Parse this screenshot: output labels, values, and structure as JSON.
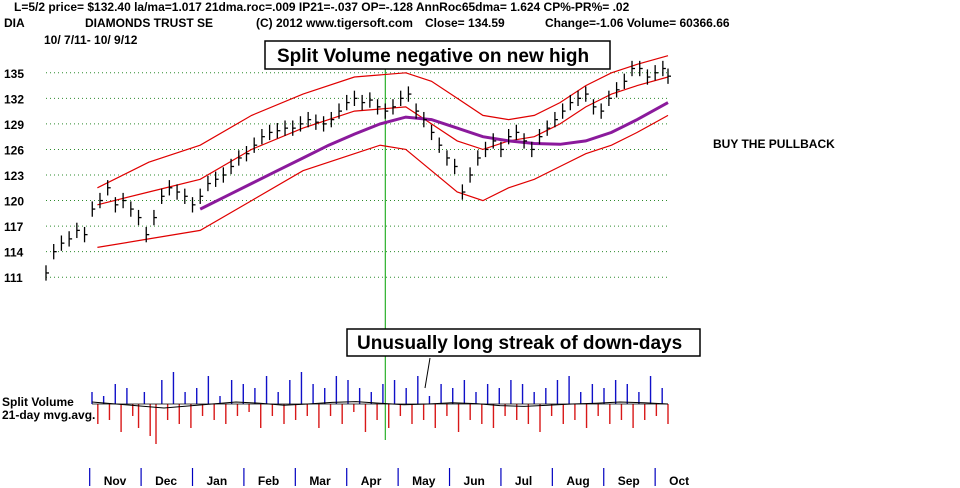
{
  "header": {
    "line1": "L=5/2  price= $132.40  la/ma=1.017 21dma.roc=.009 IP21=-.037 OP=-.128 AnnRoc65dma= 1.624 CP%-PR%=  .02",
    "symbol": "DIA",
    "name": "DIAMONDS TRUST SE",
    "source": "(C) 2012 www.tigersoft.com",
    "close": "Close=  134.59",
    "change": "Change=-1.06 Volume= 60366.66",
    "range": "10/ 7/11- 10/ 9/12"
  },
  "annotations": {
    "callout1": "Split Volume negative on new high",
    "callout2": "Unusually long streak of down-days",
    "side_note": "BUY THE PULLBACK",
    "volume_label_1": "Split Volume",
    "volume_label_2": "21-day mvg.avg."
  },
  "colors": {
    "price_bars": "#000000",
    "bands": "#e00000",
    "moving_average": "#8b1a9c",
    "vol_positive": "#1010c8",
    "vol_negative": "#d81818",
    "grid": "#2e8b2e",
    "marker_line": "#00a000",
    "month_ticks": "#0000c0"
  },
  "chart_data": {
    "type": "line",
    "title": "DIAMONDS TRUST SE",
    "date_range": [
      "10/7/11",
      "10/9/12"
    ],
    "y_ticks": [
      111,
      114,
      117,
      120,
      123,
      126,
      129,
      132,
      135
    ],
    "ylim": [
      109.5,
      136.5
    ],
    "x_ticks": [
      "Nov",
      "Dec",
      "Jan",
      "Feb",
      "Mar",
      "Apr",
      "May",
      "Jun",
      "Jul",
      "Aug",
      "Sep",
      "Oct"
    ],
    "x_range": [
      0,
      12.1
    ],
    "grid": "horizontal dotted",
    "vertical_marker_at": 6.6,
    "series": [
      {
        "kind": "price_bars",
        "points": [
          [
            0.0,
            111.5
          ],
          [
            0.15,
            114.0
          ],
          [
            0.3,
            115.0
          ],
          [
            0.45,
            115.5
          ],
          [
            0.6,
            116.5
          ],
          [
            0.75,
            116.0
          ],
          [
            0.9,
            119.0
          ],
          [
            1.05,
            120.0
          ],
          [
            1.2,
            121.5
          ],
          [
            1.35,
            119.5
          ],
          [
            1.5,
            120.0
          ],
          [
            1.65,
            119.0
          ],
          [
            1.8,
            118.0
          ],
          [
            1.95,
            116.0
          ],
          [
            2.1,
            118.0
          ],
          [
            2.25,
            120.5
          ],
          [
            2.4,
            121.5
          ],
          [
            2.55,
            121.0
          ],
          [
            2.7,
            120.5
          ],
          [
            2.85,
            119.5
          ],
          [
            3.0,
            120.5
          ],
          [
            3.15,
            122.0
          ],
          [
            3.3,
            122.5
          ],
          [
            3.45,
            123.0
          ],
          [
            3.6,
            124.0
          ],
          [
            3.75,
            125.0
          ],
          [
            3.9,
            125.5
          ],
          [
            4.05,
            126.5
          ],
          [
            4.2,
            127.5
          ],
          [
            4.35,
            128.0
          ],
          [
            4.5,
            128.2
          ],
          [
            4.65,
            128.5
          ],
          [
            4.8,
            128.5
          ],
          [
            4.95,
            129.0
          ],
          [
            5.1,
            129.5
          ],
          [
            5.25,
            129.2
          ],
          [
            5.4,
            129.0
          ],
          [
            5.55,
            129.5
          ],
          [
            5.7,
            130.5
          ],
          [
            5.85,
            131.5
          ],
          [
            6.0,
            132.0
          ],
          [
            6.15,
            131.5
          ],
          [
            6.3,
            131.8
          ],
          [
            6.45,
            131.0
          ],
          [
            6.6,
            130.5
          ],
          [
            6.75,
            131.0
          ],
          [
            6.9,
            132.0
          ],
          [
            7.05,
            132.5
          ],
          [
            7.2,
            130.5
          ],
          [
            7.35,
            129.5
          ],
          [
            7.5,
            128.0
          ],
          [
            7.65,
            126.5
          ],
          [
            7.8,
            125.0
          ],
          [
            7.95,
            124.0
          ],
          [
            8.1,
            121.0
          ],
          [
            8.25,
            123.0
          ],
          [
            8.4,
            125.0
          ],
          [
            8.55,
            126.0
          ],
          [
            8.7,
            127.0
          ],
          [
            8.85,
            126.0
          ],
          [
            9.0,
            127.5
          ],
          [
            9.15,
            128.0
          ],
          [
            9.3,
            127.0
          ],
          [
            9.45,
            126.0
          ],
          [
            9.6,
            127.5
          ],
          [
            9.75,
            128.5
          ],
          [
            9.9,
            129.5
          ],
          [
            10.05,
            130.5
          ],
          [
            10.2,
            131.5
          ],
          [
            10.35,
            132.0
          ],
          [
            10.5,
            132.5
          ],
          [
            10.65,
            131.0
          ],
          [
            10.8,
            130.5
          ],
          [
            10.95,
            132.0
          ],
          [
            11.1,
            133.0
          ],
          [
            11.25,
            134.0
          ],
          [
            11.4,
            135.5
          ],
          [
            11.55,
            135.5
          ],
          [
            11.7,
            134.5
          ],
          [
            11.85,
            135.0
          ],
          [
            12.0,
            135.5
          ],
          [
            12.1,
            134.6
          ]
        ]
      },
      {
        "kind": "upper_band",
        "points": [
          [
            1.0,
            121.5
          ],
          [
            2.0,
            124.5
          ],
          [
            3.0,
            126.5
          ],
          [
            4.0,
            130.0
          ],
          [
            5.0,
            132.5
          ],
          [
            6.0,
            134.5
          ],
          [
            7.0,
            135.0
          ],
          [
            7.5,
            134.0
          ],
          [
            8.0,
            132.0
          ],
          [
            8.5,
            130.0
          ],
          [
            9.0,
            129.5
          ],
          [
            9.5,
            130.0
          ],
          [
            10.0,
            131.5
          ],
          [
            10.5,
            133.5
          ],
          [
            11.0,
            135.0
          ],
          [
            11.5,
            136.0
          ],
          [
            12.1,
            137.0
          ]
        ]
      },
      {
        "kind": "inner_band",
        "points": [
          [
            1.0,
            119.5
          ],
          [
            2.0,
            121.0
          ],
          [
            3.0,
            122.5
          ],
          [
            4.0,
            126.0
          ],
          [
            5.0,
            128.5
          ],
          [
            6.0,
            130.5
          ],
          [
            7.0,
            131.0
          ],
          [
            7.5,
            129.0
          ],
          [
            8.0,
            127.0
          ],
          [
            8.5,
            126.0
          ],
          [
            9.0,
            127.0
          ],
          [
            9.5,
            127.5
          ],
          [
            10.0,
            129.0
          ],
          [
            10.5,
            131.0
          ],
          [
            11.0,
            132.5
          ],
          [
            11.5,
            133.5
          ],
          [
            12.1,
            134.5
          ]
        ]
      },
      {
        "kind": "lower_band",
        "points": [
          [
            1.0,
            114.5
          ],
          [
            2.0,
            115.5
          ],
          [
            3.0,
            116.5
          ],
          [
            4.0,
            120.0
          ],
          [
            5.0,
            123.5
          ],
          [
            6.0,
            125.5
          ],
          [
            6.5,
            126.5
          ],
          [
            7.0,
            126.0
          ],
          [
            7.5,
            123.5
          ],
          [
            8.0,
            121.0
          ],
          [
            8.5,
            120.0
          ],
          [
            9.0,
            121.5
          ],
          [
            9.5,
            122.5
          ],
          [
            10.0,
            124.0
          ],
          [
            10.5,
            125.5
          ],
          [
            11.0,
            126.5
          ],
          [
            11.5,
            128.0
          ],
          [
            12.1,
            130.0
          ]
        ]
      },
      {
        "kind": "moving_average",
        "points": [
          [
            3.0,
            119.0
          ],
          [
            3.5,
            120.5
          ],
          [
            4.0,
            122.0
          ],
          [
            4.5,
            123.5
          ],
          [
            5.0,
            125.0
          ],
          [
            5.5,
            126.5
          ],
          [
            6.0,
            127.8
          ],
          [
            6.5,
            129.0
          ],
          [
            7.0,
            129.8
          ],
          [
            7.5,
            129.5
          ],
          [
            8.0,
            128.5
          ],
          [
            8.5,
            127.5
          ],
          [
            9.0,
            127.0
          ],
          [
            9.5,
            126.7
          ],
          [
            10.0,
            126.6
          ],
          [
            10.5,
            127.0
          ],
          [
            11.0,
            128.0
          ],
          [
            11.5,
            129.5
          ],
          [
            12.1,
            131.5
          ]
        ]
      },
      {
        "kind": "split_volume",
        "scale": [
          -1,
          1
        ],
        "values": [
          0.3,
          -0.5,
          0.2,
          -0.4,
          0.5,
          -0.7,
          0.4,
          -0.3,
          -0.6,
          0.3,
          -0.8,
          -1.0,
          0.6,
          -0.4,
          0.8,
          -0.5,
          0.3,
          -0.6,
          0.4,
          -0.3,
          0.7,
          -0.4,
          0.2,
          -0.5,
          0.6,
          -0.3,
          0.5,
          -0.2,
          0.4,
          -0.6,
          0.7,
          -0.3,
          0.3,
          -0.5,
          0.6,
          -0.4,
          0.8,
          -0.3,
          0.5,
          -0.6,
          0.4,
          -0.3,
          0.7,
          -0.5,
          0.6,
          -0.2,
          0.4,
          -0.7,
          0.3,
          -0.4,
          0.5,
          -0.6,
          0.6,
          -0.3,
          0.4,
          -0.5,
          0.7,
          -0.4,
          0.2,
          -0.6,
          0.5,
          -0.3,
          0.4,
          -0.7,
          0.6,
          -0.4,
          0.3,
          -0.5,
          0.5,
          -0.6,
          0.4,
          -0.3,
          0.6,
          -0.4,
          0.5,
          -0.5,
          0.3,
          -0.7,
          0.4,
          -0.3,
          0.6,
          -0.5,
          0.7,
          -0.4,
          0.3,
          -0.6,
          0.5,
          -0.3,
          0.4,
          -0.5,
          0.6,
          -0.4,
          0.5,
          -0.6,
          0.3,
          -0.4,
          0.7,
          -0.3,
          0.4,
          -0.5
        ]
      },
      {
        "kind": "volume_21day_avg",
        "values": [
          0.05,
          0.0,
          -0.05,
          -0.1,
          -0.05,
          0.0,
          0.05,
          0.02,
          -0.03,
          0.0,
          0.04,
          0.06,
          0.02,
          -0.02,
          0.0,
          0.03,
          0.01,
          -0.04,
          -0.06,
          -0.03,
          0.0,
          0.02,
          0.05,
          0.03,
          0.0
        ]
      }
    ]
  }
}
